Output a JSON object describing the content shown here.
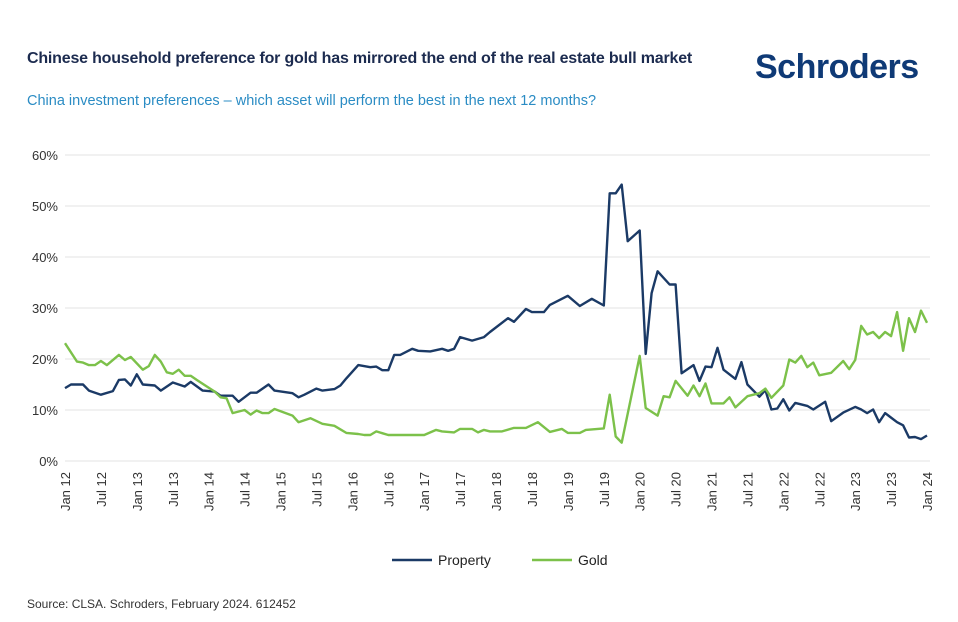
{
  "title": "Chinese household preference for gold has mirrored the end of the real estate bull market",
  "subtitle": "China investment preferences – which asset will perform the best in the next 12 months?",
  "logo": "Schroders",
  "source": "Source: CLSA. Schroders, February 2024. 612452",
  "chart_data": {
    "type": "line",
    "title": "",
    "xlabel": "",
    "ylabel": "",
    "ylim": [
      0,
      60
    ],
    "y_ticks": [
      "0%",
      "10%",
      "20%",
      "30%",
      "40%",
      "50%",
      "60%"
    ],
    "x_ticks": [
      "Jan 12",
      "Jul 12",
      "Jan 13",
      "Jul 13",
      "Jan 14",
      "Jul 14",
      "Jan 15",
      "Jul 15",
      "Jan 16",
      "Jul 16",
      "Jan 17",
      "Jul 17",
      "Jan 18",
      "Jul 18",
      "Jan 19",
      "Jul 19",
      "Jan 20",
      "Jul 20",
      "Jan 21",
      "Jul 21",
      "Jan 22",
      "Jul 22",
      "Jan 23",
      "Jul 23",
      "Jan 24"
    ],
    "xlim": [
      "2012-01",
      "2024-01"
    ],
    "grid": "horizontal",
    "legend": "bottom",
    "series": [
      {
        "name": "Property",
        "color": "#1b3a66",
        "x": [
          "2012-01",
          "2012-02",
          "2012-04",
          "2012-05",
          "2012-07",
          "2012-09",
          "2012-10",
          "2012-11",
          "2012-12",
          "2013-01",
          "2013-02",
          "2013-04",
          "2013-05",
          "2013-07",
          "2013-09",
          "2013-10",
          "2013-12",
          "2014-02",
          "2014-03",
          "2014-05",
          "2014-06",
          "2014-08",
          "2014-09",
          "2014-11",
          "2014-12",
          "2015-03",
          "2015-04",
          "2015-05",
          "2015-07",
          "2015-08",
          "2015-10",
          "2015-11",
          "2015-12",
          "2016-02",
          "2016-04",
          "2016-05",
          "2016-06",
          "2016-07",
          "2016-08",
          "2016-09",
          "2016-11",
          "2016-12",
          "2017-02",
          "2017-04",
          "2017-05",
          "2017-06",
          "2017-07",
          "2017-09",
          "2017-11",
          "2017-12",
          "2018-03",
          "2018-04",
          "2018-06",
          "2018-07",
          "2018-09",
          "2018-10",
          "2019-01",
          "2019-03",
          "2019-05",
          "2019-07",
          "2019-08",
          "2019-09",
          "2019-10",
          "2019-11",
          "2020-01",
          "2020-02",
          "2020-03",
          "2020-04",
          "2020-06",
          "2020-07",
          "2020-08",
          "2020-10",
          "2020-11",
          "2020-12",
          "2021-01",
          "2021-02",
          "2021-03",
          "2021-05",
          "2021-06",
          "2021-07",
          "2021-09",
          "2021-10",
          "2021-11",
          "2021-12",
          "2022-01",
          "2022-02",
          "2022-03",
          "2022-05",
          "2022-06",
          "2022-08",
          "2022-09",
          "2022-11",
          "2023-01",
          "2023-02",
          "2023-03",
          "2023-04",
          "2023-05",
          "2023-06",
          "2023-08",
          "2023-09",
          "2023-10",
          "2023-11",
          "2023-12",
          "2024-01"
        ],
        "y": [
          14.3,
          15,
          15,
          13.8,
          13,
          13.7,
          15.9,
          16,
          14.8,
          17,
          15,
          14.8,
          13.8,
          15.4,
          14.6,
          15.5,
          13.8,
          13.6,
          12.8,
          12.8,
          11.6,
          13.4,
          13.4,
          15,
          13.8,
          13.3,
          12.5,
          13,
          14.2,
          13.8,
          14.1,
          14.8,
          16.2,
          18.8,
          18.4,
          18.5,
          17.8,
          17.8,
          20.8,
          20.8,
          22,
          21.6,
          21.5,
          22,
          21.6,
          22,
          24.3,
          23.6,
          24.3,
          25.3,
          28,
          27.3,
          29.8,
          29.2,
          29.2,
          30.6,
          32.4,
          30.4,
          31.8,
          30.5,
          52.5,
          52.5,
          54.2,
          43.1,
          45.2,
          21,
          32.9,
          37.2,
          34.6,
          34.6,
          17.2,
          18.8,
          15.7,
          18.5,
          18.4,
          22.2,
          17.9,
          16.1,
          19.4,
          15,
          12.6,
          13.9,
          10.1,
          10.3,
          12.1,
          9.9,
          11.4,
          10.8,
          10.1,
          11.6,
          7.8,
          9.5,
          10.6,
          10.1,
          9.4,
          10.1,
          7.6,
          9.4,
          7.6,
          7.0,
          4.6,
          4.7,
          4.3,
          5
        ]
      },
      {
        "name": "Gold",
        "color": "#7cc14a",
        "x": [
          "2012-01",
          "2012-03",
          "2012-04",
          "2012-05",
          "2012-06",
          "2012-07",
          "2012-08",
          "2012-10",
          "2012-11",
          "2012-12",
          "2013-02",
          "2013-03",
          "2013-04",
          "2013-05",
          "2013-06",
          "2013-07",
          "2013-08",
          "2013-09",
          "2013-10",
          "2013-11",
          "2014-02",
          "2014-03",
          "2014-04",
          "2014-05",
          "2014-07",
          "2014-08",
          "2014-09",
          "2014-10",
          "2014-11",
          "2014-12",
          "2015-03",
          "2015-04",
          "2015-06",
          "2015-08",
          "2015-10",
          "2015-12",
          "2016-02",
          "2016-03",
          "2016-04",
          "2016-05",
          "2016-07",
          "2017-01",
          "2017-03",
          "2017-04",
          "2017-06",
          "2017-07",
          "2017-09",
          "2017-10",
          "2017-11",
          "2017-12",
          "2018-02",
          "2018-04",
          "2018-06",
          "2018-08",
          "2018-10",
          "2018-12",
          "2019-01",
          "2019-03",
          "2019-04",
          "2019-07",
          "2019-08",
          "2019-09",
          "2019-10",
          "2020-01",
          "2020-02",
          "2020-04",
          "2020-05",
          "2020-06",
          "2020-07",
          "2020-09",
          "2020-10",
          "2020-11",
          "2020-12",
          "2021-01",
          "2021-03",
          "2021-04",
          "2021-05",
          "2021-07",
          "2021-09",
          "2021-10",
          "2021-11",
          "2022-01",
          "2022-02",
          "2022-03",
          "2022-04",
          "2022-05",
          "2022-06",
          "2022-07",
          "2022-09",
          "2022-11",
          "2022-12",
          "2023-01",
          "2023-02",
          "2023-03",
          "2023-04",
          "2023-05",
          "2023-06",
          "2023-07",
          "2023-08",
          "2023-09",
          "2023-10",
          "2023-11",
          "2023-12",
          "2024-01"
        ],
        "y": [
          23.1,
          19.5,
          19.3,
          18.8,
          18.8,
          19.6,
          18.8,
          20.8,
          19.8,
          20.4,
          17.9,
          18.6,
          20.8,
          19.5,
          17.4,
          17.1,
          17.9,
          16.7,
          16.7,
          15.9,
          13.6,
          12.5,
          12.3,
          9.4,
          10,
          9.1,
          9.9,
          9.4,
          9.4,
          10.2,
          8.9,
          7.6,
          8.4,
          7.3,
          6.9,
          5.5,
          5.3,
          5.1,
          5.1,
          5.8,
          5.1,
          5.1,
          6.1,
          5.8,
          5.6,
          6.3,
          6.3,
          5.6,
          6.1,
          5.8,
          5.8,
          6.5,
          6.5,
          7.6,
          5.7,
          6.3,
          5.5,
          5.5,
          6.1,
          6.4,
          13,
          4.8,
          3.6,
          20.6,
          10.4,
          8.9,
          12.7,
          12.5,
          15.7,
          12.8,
          14.8,
          12.7,
          15.2,
          11.3,
          11.3,
          12.5,
          10.5,
          12.7,
          13.3,
          14.2,
          12.4,
          14.8,
          19.9,
          19.3,
          20.6,
          18.4,
          19.3,
          16.8,
          17.3,
          19.6,
          18,
          19.8,
          26.5,
          24.8,
          25.3,
          24.1,
          25.3,
          24.5,
          29.2,
          21.6,
          28,
          25.3,
          29.5,
          27.1
        ]
      }
    ]
  }
}
